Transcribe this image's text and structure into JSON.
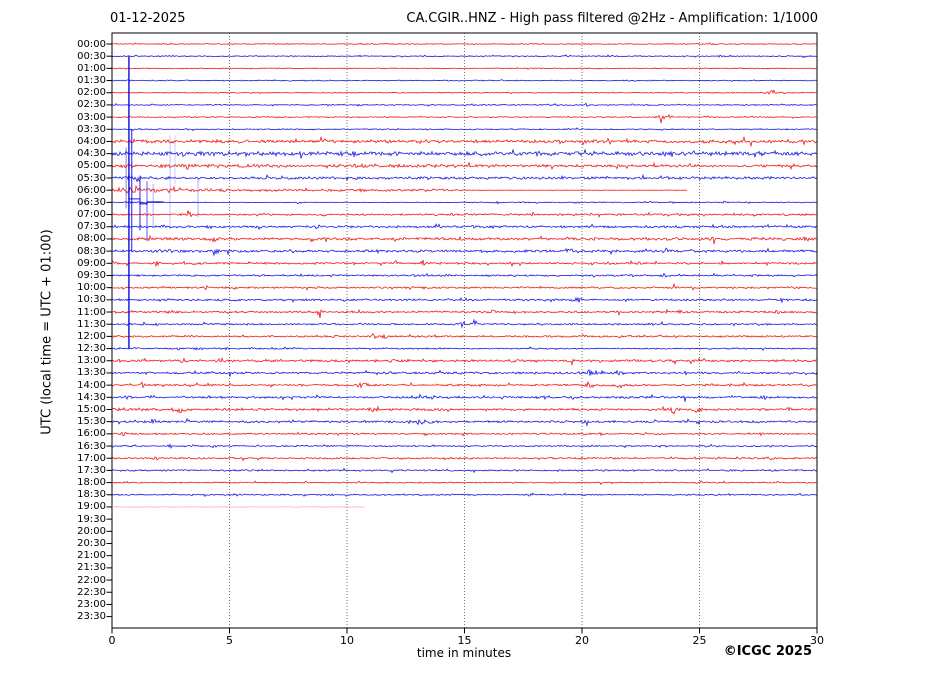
{
  "header": {
    "date": "01-12-2025",
    "title": "CA.CGIR..HNZ - High pass filtered @2Hz - Amplification: 1/1000"
  },
  "axes": {
    "y_label": "UTC (local time = UTC + 01:00)",
    "x_label": "time in minutes",
    "x_ticks": [
      0,
      5,
      10,
      15,
      20,
      25,
      30
    ],
    "x_gridlines": [
      5,
      10,
      15,
      20,
      25
    ],
    "x_range": [
      0,
      30
    ]
  },
  "footer": {
    "copyright": "©ICGC 2025"
  },
  "colors": {
    "red": "#ee0000",
    "blue": "#0000dd",
    "light_red": "#ff8888",
    "grid": "#666666",
    "axis": "#000000"
  },
  "chart_data": {
    "type": "helicorder",
    "minutes_per_row": 30,
    "note_units": "each row = 30 minutes UTC; ev = [minute, amplitude_px, width_min]; segments = [fromMin, toMin, noise_amp_px]",
    "rows": [
      {
        "t": "00:00",
        "c": "r",
        "amp": 0.5,
        "ev": [
          [
            25.4,
            1.0,
            0.3
          ]
        ]
      },
      {
        "t": "00:30",
        "c": "b",
        "amp": 0.6,
        "ev": [
          [
            19.4,
            1.4,
            0.25
          ],
          [
            25.9,
            1.2,
            0.25
          ]
        ]
      },
      {
        "t": "01:00",
        "c": "r",
        "amp": 0.5,
        "ev": []
      },
      {
        "t": "01:30",
        "c": "b",
        "amp": 0.6,
        "ev": [
          [
            12.2,
            0.8,
            0.25
          ]
        ]
      },
      {
        "t": "02:00",
        "c": "r",
        "amp": 0.5,
        "ev": [
          [
            28.1,
            2.6,
            0.35
          ]
        ]
      },
      {
        "t": "02:30",
        "c": "b",
        "amp": 0.65,
        "ev": [
          [
            9.3,
            1.2,
            0.25
          ],
          [
            20.2,
            1.3,
            0.25
          ]
        ]
      },
      {
        "t": "03:00",
        "c": "r",
        "amp": 0.6,
        "ev": [
          [
            23.35,
            3.2,
            0.4
          ],
          [
            23.75,
            2.2,
            0.3
          ],
          [
            25.4,
            1.2,
            0.25
          ]
        ]
      },
      {
        "t": "03:30",
        "c": "b",
        "amp": 0.65,
        "ev": [
          [
            19.4,
            1.1,
            0.25
          ]
        ]
      },
      {
        "t": "04:00",
        "c": "r",
        "amp": 1.9,
        "ev": []
      },
      {
        "t": "04:30",
        "c": "b",
        "amp": 2.3,
        "ev": []
      },
      {
        "t": "05:00",
        "c": "r",
        "segments": [
          [
            0,
            16,
            2.1
          ],
          [
            16,
            30,
            1.4
          ]
        ],
        "ev": []
      },
      {
        "t": "05:30",
        "c": "b",
        "amp": 1.5,
        "ev": [
          [
            1.1,
            2.5,
            0.3
          ]
        ]
      },
      {
        "t": "06:00",
        "c": "r",
        "segments": [
          [
            0,
            1.8,
            2.6
          ],
          [
            1.8,
            5,
            2.0
          ],
          [
            5,
            15,
            1.2
          ],
          [
            15,
            24.5,
            0.18
          ]
        ],
        "end": 24.5,
        "ev": [
          [
            0.7,
            3.5,
            0.4
          ]
        ]
      },
      {
        "t": "06:30",
        "c": "b",
        "segments": [
          [
            0,
            0.55,
            0.35
          ],
          [
            0.55,
            1.6,
            1.2
          ],
          [
            1.6,
            15,
            0.28
          ],
          [
            15,
            30,
            0.55
          ]
        ],
        "ev": [
          [
            8.0,
            1.0,
            0.25
          ],
          [
            16.4,
            1.8,
            0.25
          ],
          [
            18.0,
            1.2,
            0.25
          ],
          [
            19.8,
            2.4,
            0.3
          ],
          [
            22.9,
            0.9,
            0.25
          ],
          [
            26.0,
            1.1,
            0.25
          ]
        ]
      },
      {
        "t": "07:00",
        "c": "r",
        "amp": 1.05,
        "ev": [
          [
            3.3,
            3.0,
            0.3
          ],
          [
            9.0,
            1.3,
            0.25
          ],
          [
            14.5,
            1.0,
            0.25
          ],
          [
            22.8,
            1.4,
            0.25
          ],
          [
            27.4,
            1.0,
            0.25
          ]
        ]
      },
      {
        "t": "07:30",
        "c": "b",
        "amp": 1.35,
        "ev": []
      },
      {
        "t": "08:00",
        "c": "r",
        "amp": 1.6,
        "ev": [
          [
            1.6,
            1.8,
            0.25
          ],
          [
            4.3,
            1.8,
            0.25
          ],
          [
            9.0,
            1.8,
            0.25
          ],
          [
            13.0,
            1.5,
            0.25
          ],
          [
            19.4,
            2.2,
            0.25
          ],
          [
            25.6,
            1.8,
            0.25
          ],
          [
            29.5,
            1.8,
            0.25
          ]
        ]
      },
      {
        "t": "08:30",
        "c": "b",
        "amp": 1.45,
        "ev": [
          [
            2.0,
            1.5,
            0.25
          ],
          [
            4.4,
            2.2,
            0.25
          ],
          [
            11.4,
            1.8,
            0.25
          ],
          [
            19.4,
            2.6,
            0.3
          ],
          [
            23.6,
            2.2,
            0.25
          ],
          [
            24.6,
            1.8,
            0.25
          ]
        ]
      },
      {
        "t": "09:00",
        "c": "r",
        "amp": 1.1,
        "ev": [
          [
            1.9,
            1.8,
            0.25
          ],
          [
            12.1,
            2.2,
            0.25
          ],
          [
            13.2,
            3.0,
            0.3
          ],
          [
            17.0,
            1.2,
            0.25
          ],
          [
            22.4,
            1.3,
            0.25
          ]
        ]
      },
      {
        "t": "09:30",
        "c": "b",
        "amp": 1.0,
        "ev": [
          [
            14.2,
            1.2,
            0.25
          ],
          [
            23.5,
            2.6,
            0.3
          ],
          [
            27.3,
            1.4,
            0.25
          ]
        ]
      },
      {
        "t": "10:00",
        "c": "r",
        "amp": 1.0,
        "ev": [
          [
            4.0,
            1.3,
            0.25
          ],
          [
            17.4,
            2.2,
            0.25
          ],
          [
            24.0,
            1.2,
            0.25
          ],
          [
            29.0,
            2.2,
            0.35
          ]
        ]
      },
      {
        "t": "10:30",
        "c": "b",
        "amp": 1.15,
        "ev": [
          [
            5.2,
            1.3,
            0.25
          ],
          [
            15.0,
            1.4,
            0.25
          ],
          [
            19.8,
            2.3,
            0.5
          ],
          [
            28.5,
            1.6,
            0.25
          ]
        ]
      },
      {
        "t": "11:00",
        "c": "r",
        "amp": 1.15,
        "ev": [
          [
            2.5,
            1.4,
            0.25
          ],
          [
            8.8,
            3.2,
            0.3
          ],
          [
            16.2,
            1.2,
            0.25
          ],
          [
            21.5,
            1.4,
            0.25
          ],
          [
            24.2,
            1.4,
            0.25
          ],
          [
            28.3,
            1.2,
            0.25
          ]
        ]
      },
      {
        "t": "11:30",
        "c": "b",
        "amp": 1.0,
        "ev": [
          [
            1.9,
            1.4,
            0.25
          ],
          [
            10.7,
            2.2,
            0.25
          ],
          [
            14.95,
            3.8,
            0.25
          ],
          [
            15.45,
            4.2,
            0.25
          ],
          [
            23.0,
            1.2,
            0.25
          ],
          [
            26.4,
            1.7,
            0.25
          ]
        ]
      },
      {
        "t": "12:00",
        "c": "r",
        "amp": 1.05,
        "ev": [
          [
            0.9,
            1.2,
            0.25
          ],
          [
            11.2,
            2.2,
            0.25
          ],
          [
            11.6,
            2.2,
            0.25
          ],
          [
            17.5,
            1.2,
            0.25
          ],
          [
            23.3,
            1.4,
            0.25
          ]
        ]
      },
      {
        "t": "12:30",
        "c": "b",
        "amp": 0.8,
        "ev": [
          [
            1.0,
            1.4,
            0.25
          ],
          [
            2.8,
            1.3,
            0.25
          ],
          [
            3.6,
            1.3,
            0.25
          ],
          [
            4.8,
            1.1,
            0.25
          ],
          [
            10.2,
            1.4,
            0.25
          ],
          [
            19.7,
            1.0,
            0.25
          ]
        ]
      },
      {
        "t": "13:00",
        "c": "r",
        "amp": 1.35,
        "ev": [
          [
            0.3,
            2.2,
            0.25
          ],
          [
            3.0,
            1.8,
            0.25
          ],
          [
            4.6,
            2.2,
            0.25
          ],
          [
            11.8,
            2.4,
            0.35
          ],
          [
            17.1,
            1.8,
            0.25
          ],
          [
            19.5,
            1.8,
            0.25
          ],
          [
            23.8,
            2.2,
            0.25
          ],
          [
            28.6,
            1.6,
            0.25
          ]
        ]
      },
      {
        "t": "13:30",
        "c": "b",
        "amp": 1.2,
        "ev": [
          [
            1.0,
            1.8,
            0.25
          ],
          [
            4.1,
            1.8,
            0.25
          ],
          [
            4.9,
            1.4,
            0.25
          ],
          [
            15.0,
            1.6,
            0.25
          ],
          [
            20.4,
            2.6,
            0.7
          ],
          [
            21.6,
            2.2,
            0.4
          ],
          [
            27.7,
            1.8,
            0.25
          ]
        ]
      },
      {
        "t": "14:00",
        "c": "r",
        "amp": 1.1,
        "ev": [
          [
            1.3,
            2.2,
            0.25
          ],
          [
            4.1,
            1.8,
            0.25
          ],
          [
            10.6,
            2.3,
            0.6
          ],
          [
            20.3,
            2.8,
            0.5
          ],
          [
            21.6,
            2.6,
            0.4
          ],
          [
            26.3,
            1.4,
            0.25
          ]
        ]
      },
      {
        "t": "14:30",
        "c": "b",
        "amp": 1.2,
        "ev": [
          [
            0.6,
            1.4,
            0.25
          ],
          [
            1.7,
            1.4,
            0.25
          ],
          [
            4.6,
            1.8,
            0.25
          ],
          [
            13.2,
            2.2,
            1.2
          ],
          [
            18.5,
            1.8,
            0.25
          ],
          [
            19.5,
            1.8,
            0.25
          ],
          [
            24.3,
            1.4,
            0.25
          ],
          [
            27.7,
            2.4,
            0.4
          ]
        ]
      },
      {
        "t": "15:00",
        "c": "r",
        "segments": [
          [
            0,
            3.5,
            1.9
          ],
          [
            3.5,
            30,
            1.25
          ]
        ],
        "ev": [
          [
            2.9,
            2.3,
            0.25
          ],
          [
            11.1,
            2.3,
            0.5
          ],
          [
            14.3,
            1.8,
            0.25
          ],
          [
            23.9,
            3.2,
            0.4
          ],
          [
            24.9,
            3.2,
            0.4
          ],
          [
            28.8,
            1.3,
            0.25
          ]
        ]
      },
      {
        "t": "15:30",
        "c": "b",
        "amp": 1.2,
        "ev": [
          [
            1.0,
            1.8,
            0.25
          ],
          [
            1.8,
            3.8,
            0.25
          ],
          [
            3.2,
            2.2,
            0.25
          ],
          [
            5.6,
            1.8,
            0.25
          ],
          [
            13.1,
            2.3,
            1.0
          ],
          [
            20.1,
            2.3,
            0.25
          ],
          [
            25.0,
            2.3,
            0.25
          ],
          [
            27.5,
            1.5,
            0.25
          ]
        ]
      },
      {
        "t": "16:00",
        "c": "r",
        "amp": 0.9,
        "ev": [
          [
            0.5,
            2.8,
            0.3
          ],
          [
            6.0,
            1.4,
            0.25
          ],
          [
            13.3,
            1.4,
            0.25
          ],
          [
            20.8,
            1.4,
            0.25
          ],
          [
            23.3,
            1.4,
            0.25
          ],
          [
            27.6,
            1.4,
            0.25
          ]
        ]
      },
      {
        "t": "16:30",
        "c": "b",
        "amp": 0.8,
        "ev": [
          [
            2.4,
            1.4,
            0.25
          ],
          [
            3.5,
            1.4,
            0.25
          ],
          [
            4.3,
            1.1,
            0.25
          ],
          [
            9.1,
            1.4,
            0.25
          ],
          [
            23.4,
            1.3,
            0.25
          ]
        ]
      },
      {
        "t": "17:00",
        "c": "r",
        "amp": 1.0,
        "ev": [
          [
            1.9,
            2.3,
            0.35
          ],
          [
            9.4,
            1.8,
            0.25
          ],
          [
            24.8,
            1.8,
            0.25
          ],
          [
            28.0,
            1.3,
            0.25
          ]
        ]
      },
      {
        "t": "17:30",
        "c": "b",
        "amp": 0.95,
        "ev": []
      },
      {
        "t": "18:00",
        "c": "r",
        "amp": 0.7,
        "ev": [
          [
            8.2,
            1.3,
            0.25
          ],
          [
            20.8,
            1.4,
            0.25
          ],
          [
            25.0,
            2.3,
            0.4
          ],
          [
            28.3,
            1.3,
            0.25
          ]
        ]
      },
      {
        "t": "18:30",
        "c": "b",
        "amp": 0.8,
        "ev": [
          [
            5.3,
            2.8,
            0.3
          ],
          [
            17.8,
            1.4,
            0.25
          ],
          [
            26.2,
            1.0,
            0.25
          ]
        ]
      },
      {
        "t": "19:00",
        "c": "r",
        "amp": 0.3,
        "end": 10.8,
        "light": true,
        "ev": []
      },
      {
        "t": "19:30",
        "c": "b",
        "no_data": true
      },
      {
        "t": "20:00",
        "c": "r",
        "no_data": true
      },
      {
        "t": "20:30",
        "c": "b",
        "no_data": true
      },
      {
        "t": "21:00",
        "c": "r",
        "no_data": true
      },
      {
        "t": "21:30",
        "c": "b",
        "no_data": true
      },
      {
        "t": "22:00",
        "c": "r",
        "no_data": true
      },
      {
        "t": "22:30",
        "c": "b",
        "no_data": true
      },
      {
        "t": "23:00",
        "c": "r",
        "no_data": true
      },
      {
        "t": "23:30",
        "c": "b",
        "no_data": true
      }
    ],
    "overflow_lines": [
      {
        "m": 0.72,
        "r0": 1,
        "r1": 25,
        "w": 1.4,
        "o": 0.95
      },
      {
        "m": 0.84,
        "r0": 7,
        "r1": 17,
        "w": 1.1,
        "o": 0.8
      },
      {
        "m": 0.6,
        "r0": 8.5,
        "r1": 13.5,
        "w": 0.9,
        "o": 0.55
      },
      {
        "m": 1.19,
        "r0": 10.8,
        "r1": 15.3,
        "w": 1.0,
        "o": 0.85
      },
      {
        "m": 1.49,
        "r0": 11.3,
        "r1": 16.2,
        "w": 0.9,
        "o": 0.7
      },
      {
        "m": 1.75,
        "r0": 11.5,
        "r1": 15.0,
        "w": 0.8,
        "o": 0.38
      },
      {
        "m": 2.47,
        "r0": 7.5,
        "r1": 15.2,
        "w": 0.8,
        "o": 0.3
      },
      {
        "m": 2.68,
        "r0": 7.5,
        "r1": 11.5,
        "w": 0.8,
        "o": 0.26
      },
      {
        "m": 3.66,
        "r0": 11.0,
        "r1": 14.2,
        "w": 0.8,
        "o": 0.4
      }
    ],
    "step_overlay": {
      "row": 13,
      "points": [
        [
          0.72,
          -3.5
        ],
        [
          1.19,
          -3.5
        ],
        [
          1.19,
          1.5
        ],
        [
          1.49,
          1.5
        ],
        [
          1.49,
          -0.5
        ],
        [
          2.2,
          -0.5
        ]
      ]
    }
  }
}
